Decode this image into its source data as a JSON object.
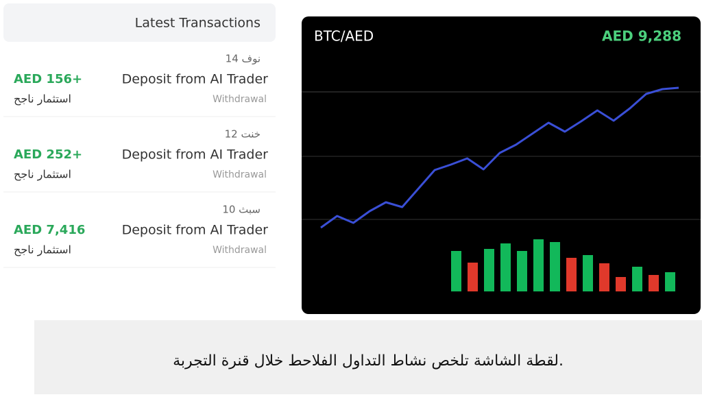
{
  "transactions": {
    "title": "Latest Transactions",
    "items": [
      {
        "date": "14 نوف",
        "title": "Deposit from AI Trader",
        "type": "Withdrawal",
        "amount": "AED 156+",
        "status": "استثمار ناجح"
      },
      {
        "date": "12 خنت",
        "title": "Deposit from AI Trader",
        "type": "Withdrawal",
        "amount": "AED 252+",
        "status": "استثمار ناجح"
      },
      {
        "date": "10 سبث",
        "title": "Deposit from AI Trader",
        "type": "Withdrawal",
        "amount": "AED 7,416",
        "status": "استثمار ناجح"
      }
    ]
  },
  "chart_data": {
    "type": "line",
    "title": "BTC/AED",
    "price": "AED 9,288",
    "color": "#3a4fd6",
    "values": [
      88,
      105,
      95,
      112,
      125,
      118,
      145,
      172,
      180,
      189,
      173,
      197,
      209,
      225,
      241,
      228,
      243,
      259,
      244,
      262,
      283,
      290,
      292
    ],
    "ylim": [
      0,
      320
    ],
    "volume": {
      "values": [
        59,
        42,
        62,
        70,
        59,
        76,
        72,
        49,
        53,
        41,
        21,
        36,
        24,
        28
      ],
      "colors": [
        "#12b85a",
        "#e0392b",
        "#12b85a",
        "#12b85a",
        "#12b85a",
        "#12b85a",
        "#12b85a",
        "#e0392b",
        "#12b85a",
        "#e0392b",
        "#e0392b",
        "#12b85a",
        "#e0392b",
        "#12b85a"
      ],
      "ylim": [
        0,
        100
      ]
    }
  },
  "caption": "لقطة الشاشة تلخص نشاط التداول الفلاحط خلال قنرة التجربة."
}
